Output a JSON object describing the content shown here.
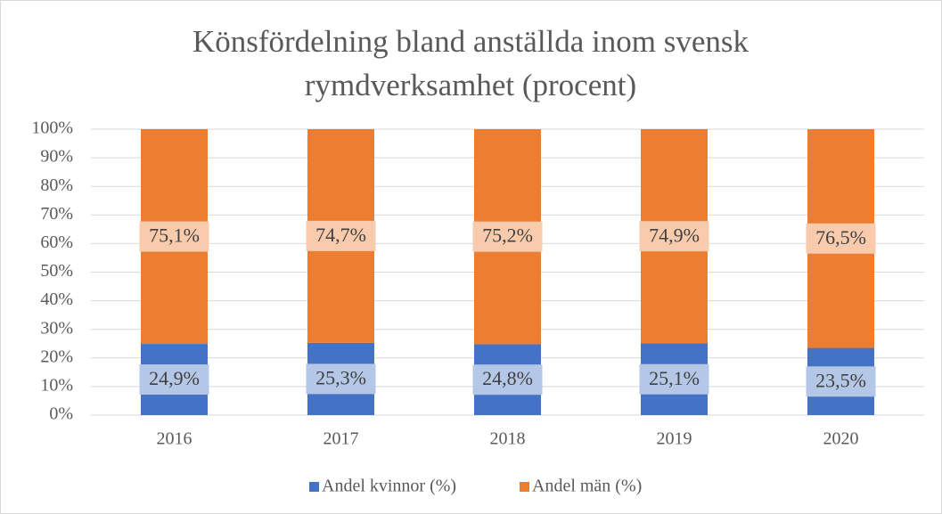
{
  "chart_data": {
    "type": "stacked_bar",
    "title": "Könsfördelning bland anställda inom svensk rymdverksamhet (procent)",
    "categories": [
      "2016",
      "2017",
      "2018",
      "2019",
      "2020"
    ],
    "series": [
      {
        "name": "Andel kvinnor (%)",
        "color": "#4472c4",
        "label_bg": "#b4c7e7",
        "values": [
          24.9,
          25.3,
          24.8,
          25.1,
          23.5
        ],
        "value_labels": [
          "24,9%",
          "25,3%",
          "24,8%",
          "25,1%",
          "23,5%"
        ]
      },
      {
        "name": "Andel män (%)",
        "color": "#ed7d31",
        "label_bg": "#f8cbad",
        "values": [
          75.1,
          74.7,
          75.2,
          74.9,
          76.5
        ],
        "value_labels": [
          "75,1%",
          "74,7%",
          "75,2%",
          "74,9%",
          "76,5%"
        ]
      }
    ],
    "ylim": [
      0,
      100
    ],
    "yticks": [
      {
        "value": 0,
        "label": "0%"
      },
      {
        "value": 10,
        "label": "10%"
      },
      {
        "value": 20,
        "label": "20%"
      },
      {
        "value": 30,
        "label": "30%"
      },
      {
        "value": 40,
        "label": "40%"
      },
      {
        "value": 50,
        "label": "50%"
      },
      {
        "value": 60,
        "label": "60%"
      },
      {
        "value": 70,
        "label": "70%"
      },
      {
        "value": 80,
        "label": "80%"
      },
      {
        "value": 90,
        "label": "90%"
      },
      {
        "value": 100,
        "label": "100%"
      }
    ],
    "grid": true,
    "legend": "bottom"
  }
}
